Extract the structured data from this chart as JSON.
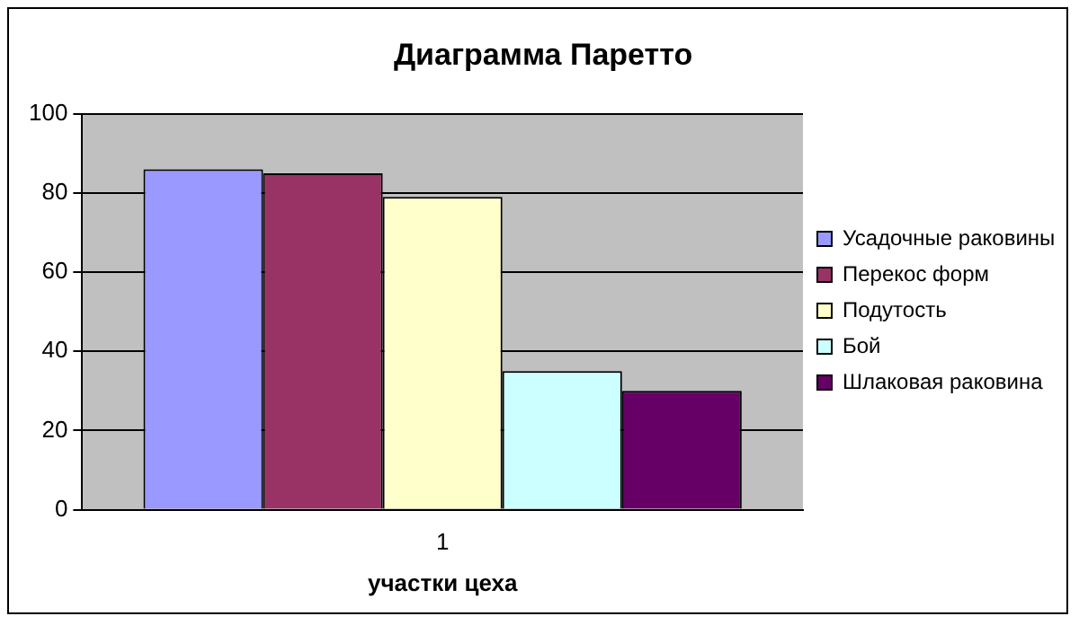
{
  "chart_data": {
    "type": "bar",
    "title": "Диаграмма Паретто",
    "xlabel": "участки цеха",
    "categories": [
      "1"
    ],
    "series": [
      {
        "name": "Усадочные раковины",
        "color": "#9999ff",
        "values": [
          86
        ]
      },
      {
        "name": "Перекос форм",
        "color": "#993366",
        "values": [
          85
        ]
      },
      {
        "name": "Подутость",
        "color": "#ffffcc",
        "values": [
          79
        ]
      },
      {
        "name": "Бой",
        "color": "#ccffff",
        "values": [
          35
        ]
      },
      {
        "name": "Шлаковая раковина",
        "color": "#660066",
        "values": [
          30
        ]
      }
    ],
    "ylim": [
      0,
      100
    ],
    "yticks": [
      0,
      20,
      40,
      60,
      80,
      100
    ],
    "grid": "y",
    "legend": "right"
  }
}
